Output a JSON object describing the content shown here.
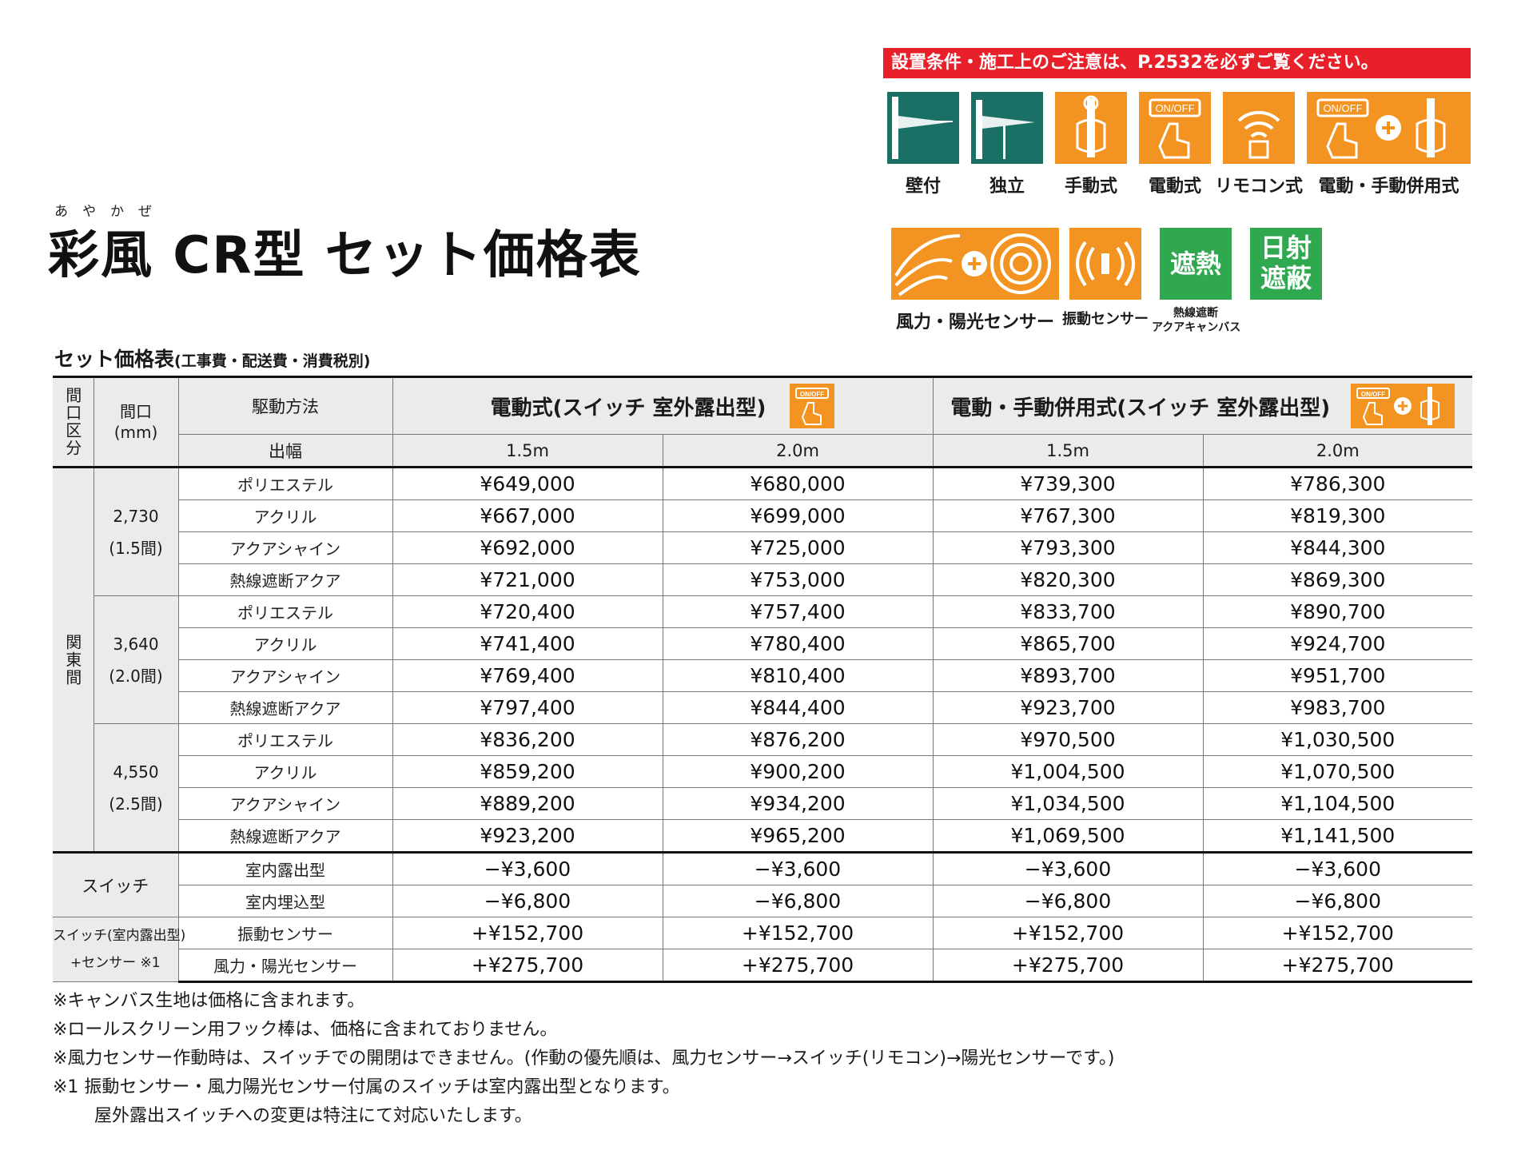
{
  "ruby": "あやかぜ",
  "title": "彩風 CR型 セット価格表",
  "notice": "設置条件・施工上のご注意は、P.2532を必ずご覧ください。",
  "icons_row1": [
    {
      "label": "壁付",
      "icon": "wall-mount-icon"
    },
    {
      "label": "独立",
      "icon": "freestanding-icon"
    },
    {
      "label": "手動式",
      "icon": "manual-crank-icon"
    },
    {
      "label": "電動式",
      "icon": "electric-switch-icon"
    },
    {
      "label": "リモコン式",
      "icon": "remote-control-icon"
    },
    {
      "label": "電動・手動併用式",
      "icon": "electric-manual-combo-icon"
    }
  ],
  "icons_row2": [
    {
      "label": "風力・陽光センサー",
      "icon": "wind-sun-sensor-icon"
    },
    {
      "label": "振動センサー",
      "icon": "vibration-sensor-icon"
    },
    {
      "label": "熱線遮断アクアキャンバス",
      "badge": "遮熱",
      "label_line1": "熱線遮断",
      "label_line2": "アクアキャンバス"
    },
    {
      "badge": "日射遮蔽",
      "badge_line1": "日射",
      "badge_line2": "遮蔽"
    }
  ],
  "subtitle": "セット価格表",
  "subtitle_note": "(工事費・配送費・消費税別)",
  "table": {
    "h_area": "間口区分",
    "h_width": "間口",
    "h_width_unit": "(mm)",
    "h_drive": "駆動方法",
    "h_projection": "出幅",
    "h_group1": "電動式(スイッチ 室外露出型)",
    "h_group2": "電動・手動併用式(スイッチ 室外露出型)",
    "projections": [
      "1.5m",
      "2.0m",
      "1.5m",
      "2.0m"
    ],
    "area_label": "関東間",
    "blocks": [
      {
        "width": "2,730",
        "ken": "(1.5間)",
        "rows": [
          {
            "material": "ポリエステル",
            "prices": [
              "¥649,000",
              "¥680,000",
              "¥739,300",
              "¥786,300"
            ]
          },
          {
            "material": "アクリル",
            "prices": [
              "¥667,000",
              "¥699,000",
              "¥767,300",
              "¥819,300"
            ]
          },
          {
            "material": "アクアシャイン",
            "prices": [
              "¥692,000",
              "¥725,000",
              "¥793,300",
              "¥844,300"
            ]
          },
          {
            "material": "熱線遮断アクア",
            "prices": [
              "¥721,000",
              "¥753,000",
              "¥820,300",
              "¥869,300"
            ]
          }
        ]
      },
      {
        "width": "3,640",
        "ken": "(2.0間)",
        "rows": [
          {
            "material": "ポリエステル",
            "prices": [
              "¥720,400",
              "¥757,400",
              "¥833,700",
              "¥890,700"
            ]
          },
          {
            "material": "アクリル",
            "prices": [
              "¥741,400",
              "¥780,400",
              "¥865,700",
              "¥924,700"
            ]
          },
          {
            "material": "アクアシャイン",
            "prices": [
              "¥769,400",
              "¥810,400",
              "¥893,700",
              "¥951,700"
            ]
          },
          {
            "material": "熱線遮断アクア",
            "prices": [
              "¥797,400",
              "¥844,400",
              "¥923,700",
              "¥983,700"
            ]
          }
        ]
      },
      {
        "width": "4,550",
        "ken": "(2.5間)",
        "rows": [
          {
            "material": "ポリエステル",
            "prices": [
              "¥836,200",
              "¥876,200",
              "¥970,500",
              "¥1,030,500"
            ]
          },
          {
            "material": "アクリル",
            "prices": [
              "¥859,200",
              "¥900,200",
              "¥1,004,500",
              "¥1,070,500"
            ]
          },
          {
            "material": "アクアシャイン",
            "prices": [
              "¥889,200",
              "¥934,200",
              "¥1,034,500",
              "¥1,104,500"
            ]
          },
          {
            "material": "熱線遮断アクア",
            "prices": [
              "¥923,200",
              "¥965,200",
              "¥1,069,500",
              "¥1,141,500"
            ]
          }
        ]
      }
    ],
    "switch_label": "スイッチ",
    "switch_rows": [
      {
        "type": "室内露出型",
        "prices": [
          "−¥3,600",
          "−¥3,600",
          "−¥3,600",
          "−¥3,600"
        ]
      },
      {
        "type": "室内埋込型",
        "prices": [
          "−¥6,800",
          "−¥6,800",
          "−¥6,800",
          "−¥6,800"
        ]
      }
    ],
    "sensor_label1": "スイッチ(室内露出型)",
    "sensor_label2": "+センサー ※1",
    "sensor_rows": [
      {
        "type": "振動センサー",
        "prices": [
          "+¥152,700",
          "+¥152,700",
          "+¥152,700",
          "+¥152,700"
        ]
      },
      {
        "type": "風力・陽光センサー",
        "prices": [
          "+¥275,700",
          "+¥275,700",
          "+¥275,700",
          "+¥275,700"
        ]
      }
    ]
  },
  "notes": [
    "※キャンバス生地は価格に含まれます。",
    "※ロールスクリーン用フック棒は、価格に含まれておりません。",
    "※風力センサー作動時は、スイッチでの開閉はできません。(作動の優先順は、風力センサー→スイッチ(リモコン)→陽光センサーです。)",
    "※1 振動センサー・風力陽光センサー付属のスイッチは室内露出型となります。",
    "屋外露出スイッチへの変更は特注にて対応いたします。"
  ],
  "colors": {
    "accent_red": "#e8202a",
    "orange": "#f39322",
    "teal": "#1b7066",
    "green": "#2fa84f"
  }
}
